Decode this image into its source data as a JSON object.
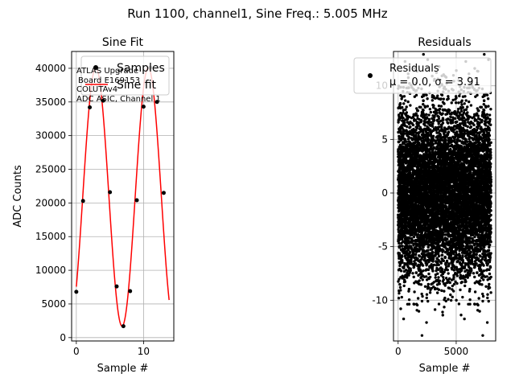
{
  "figure": {
    "suptitle": "Run 1100, channel1, Sine Freq.: 5.005 MHz"
  },
  "chart_data": [
    {
      "type": "scatter",
      "title": "Sine Fit",
      "xlabel": "Sample #",
      "ylabel": "ADC Counts",
      "xlim": [
        -0.7,
        14.5
      ],
      "ylim": [
        -500,
        42500
      ],
      "grid": true,
      "x_ticks": [
        0,
        10
      ],
      "y_ticks": [
        0,
        5000,
        10000,
        15000,
        20000,
        25000,
        30000,
        35000,
        40000
      ],
      "legend": {
        "placement": "top-right",
        "entries": [
          "Samples",
          "Sine fit"
        ]
      },
      "annotation": [
        "ATLAS Upgrade",
        "Board E169153",
        "COLUTAv4",
        "ADC ASIC, Channel 1"
      ],
      "series": [
        {
          "name": "Samples",
          "kind": "points",
          "color": "#000000",
          "x": [
            0,
            1,
            2,
            3,
            4,
            5,
            6,
            7,
            8,
            9,
            10,
            11,
            12,
            13
          ],
          "y": [
            6800,
            20300,
            34200,
            40000,
            35200,
            21600,
            7600,
            1700,
            6900,
            20400,
            34300,
            40100,
            35000,
            21500
          ]
        },
        {
          "name": "Sine fit",
          "kind": "line",
          "color": "#ff0000",
          "model": {
            "offset": 20900,
            "amplitude": 19200,
            "period": 7.8,
            "phase_deg": 316,
            "x_range": [
              0,
              13.8
            ]
          }
        }
      ]
    },
    {
      "type": "scatter",
      "title": "Residuals",
      "xlabel": "Sample #",
      "ylabel": "",
      "xlim": [
        -400,
        8400
      ],
      "ylim": [
        -13.8,
        13.2
      ],
      "grid": true,
      "x_ticks": [
        0,
        5000
      ],
      "y_ticks": [
        -10,
        -5,
        0,
        5,
        10
      ],
      "legend": {
        "placement": "top-right",
        "entries": [
          "Residuals",
          "μ = 0.0, σ = 3.91"
        ]
      },
      "series": [
        {
          "name": "Residuals",
          "kind": "points",
          "color": "#000000",
          "n_points": 8000,
          "mean": 0.0,
          "std": 3.91
        }
      ]
    }
  ]
}
